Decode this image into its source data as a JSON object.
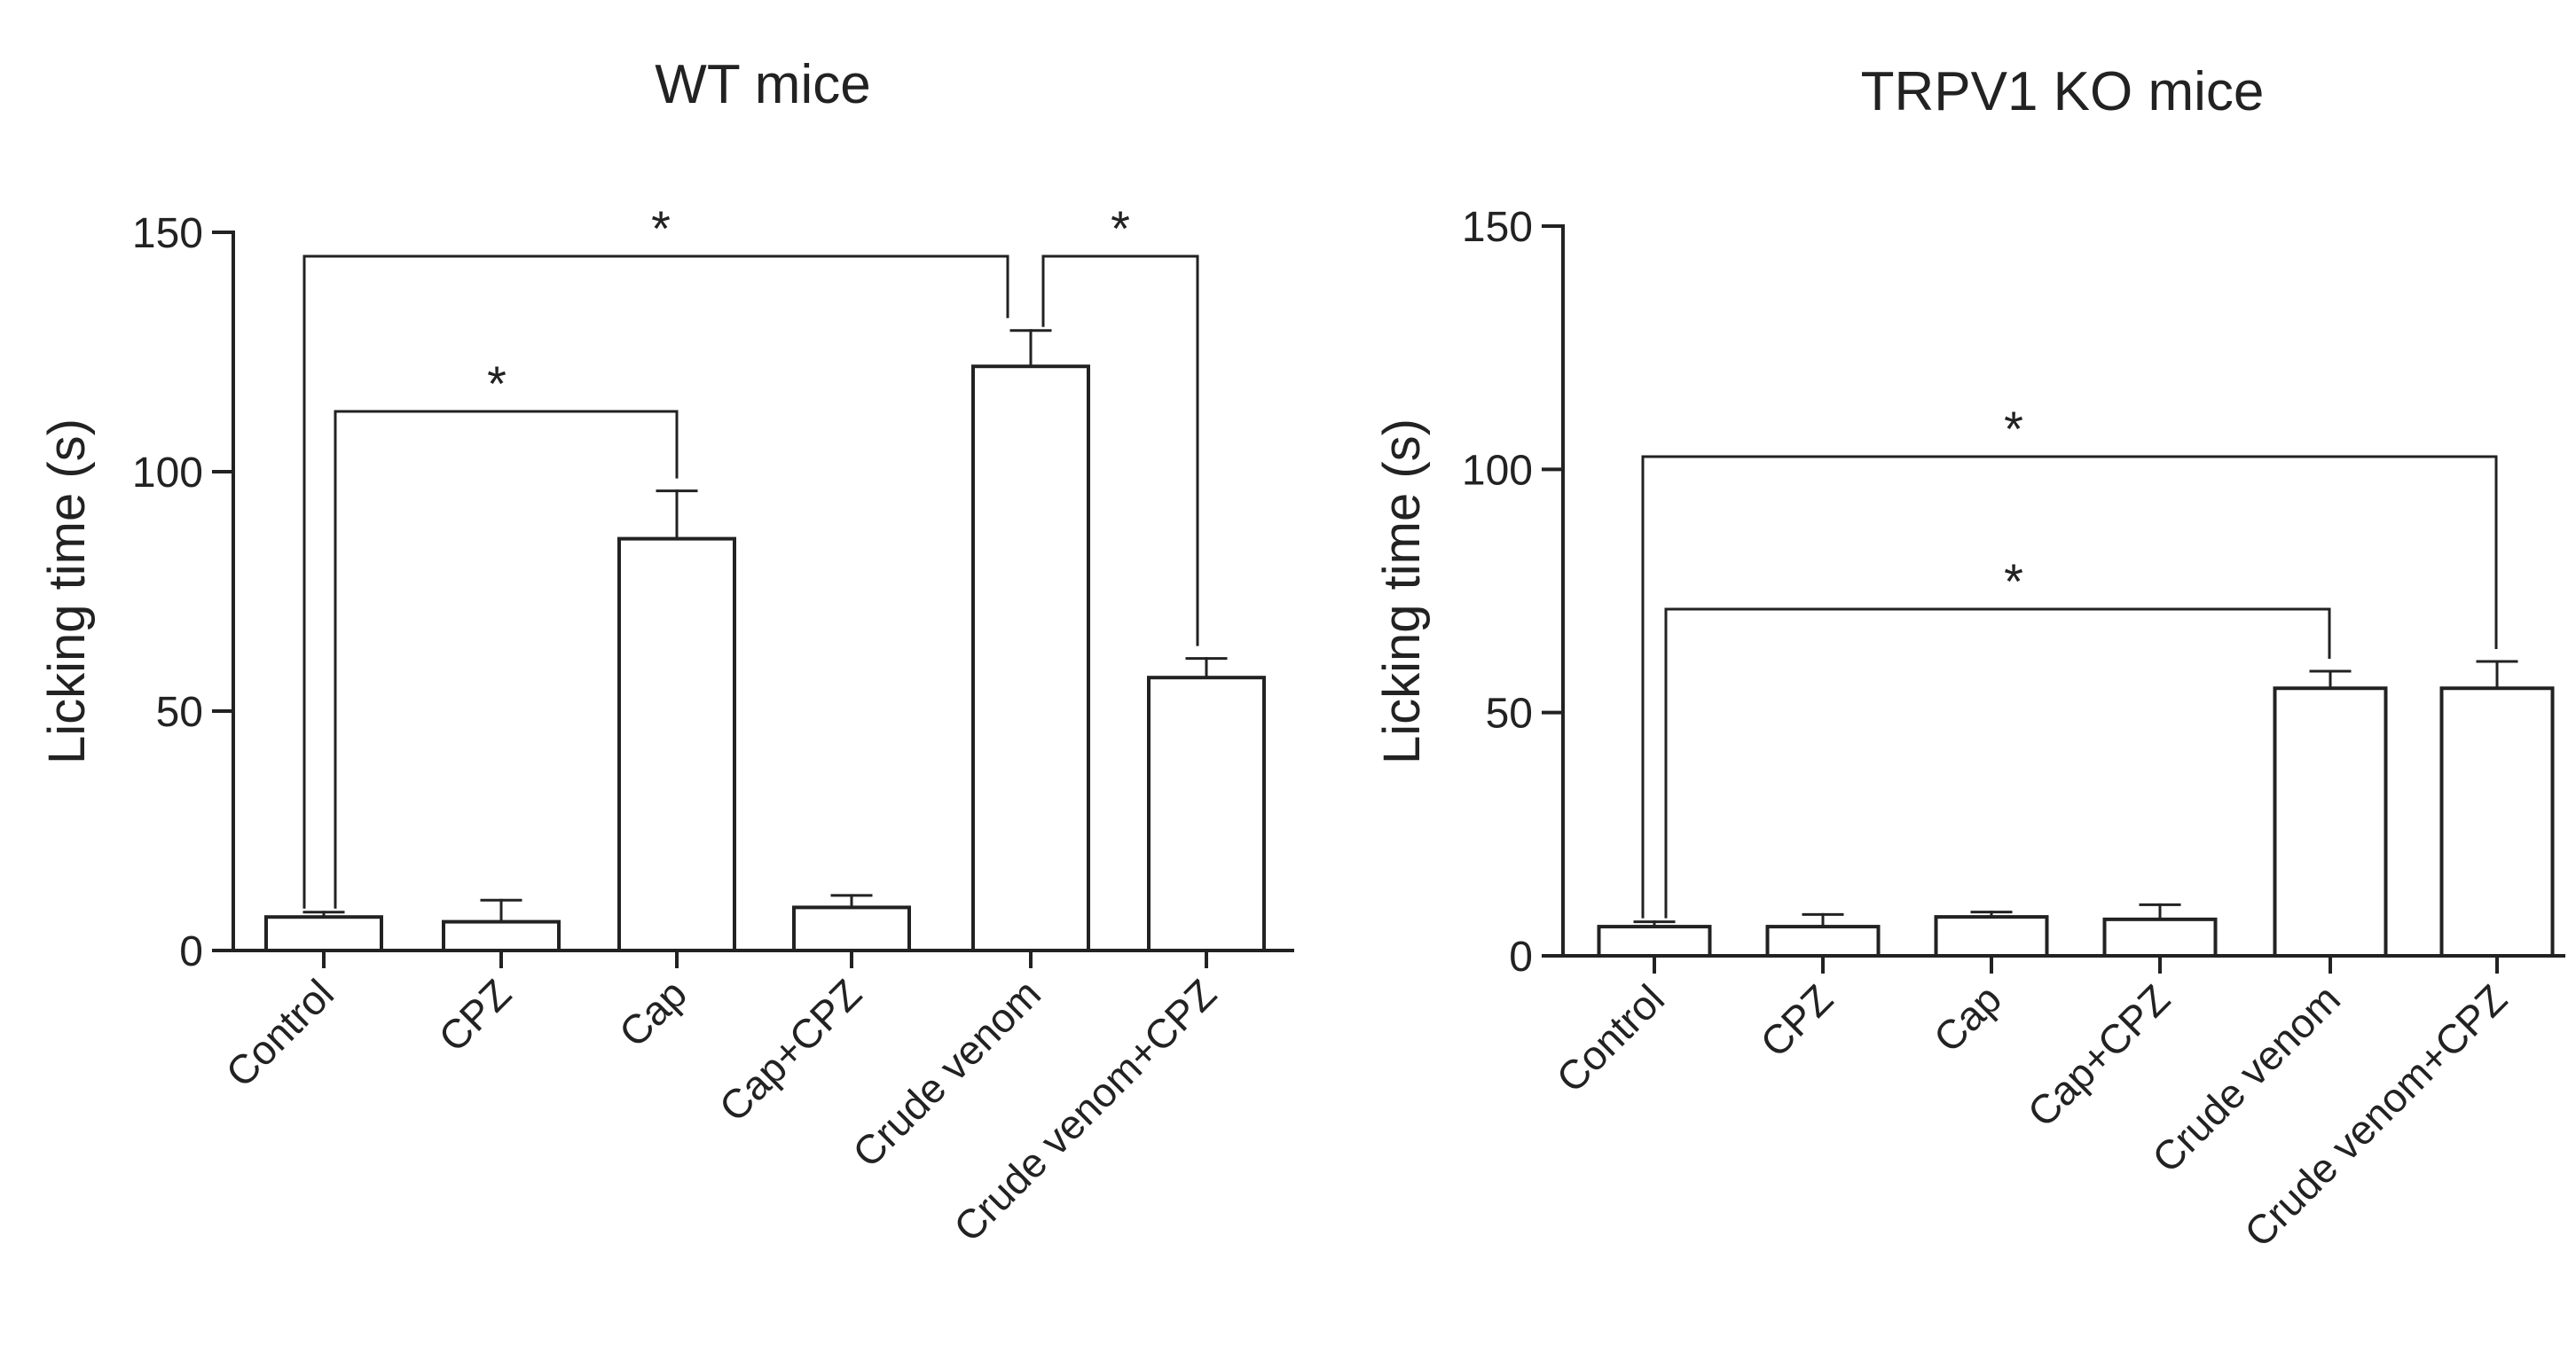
{
  "colors": {
    "ink": "#222222",
    "bar_fill": "#ffffff",
    "background": "#ffffff"
  },
  "chart_data": [
    {
      "type": "bar",
      "title": "WT mice",
      "xlabel": "",
      "ylabel": "Licking time (s)",
      "ylim": [
        0,
        150
      ],
      "yticks": [
        0,
        50,
        100,
        150
      ],
      "categories": [
        "Control",
        "CPZ",
        "Cap",
        "Cap+CPZ",
        "Crude venom",
        "Crude venom+CPZ"
      ],
      "values": [
        7,
        6,
        86,
        9,
        122,
        57
      ],
      "errors": [
        1,
        4.5,
        10,
        2.5,
        7.5,
        4
      ],
      "significance": [
        {
          "from": "Control",
          "to": "Crude venom",
          "label": "*"
        },
        {
          "from": "Crude venom",
          "to": "Crude venom+CPZ",
          "label": "*"
        },
        {
          "from": "Control",
          "to": "Cap",
          "label": "*"
        }
      ]
    },
    {
      "type": "bar",
      "title": "TRPV1 KO mice",
      "xlabel": "",
      "ylabel": "Licking time (s)",
      "ylim": [
        0,
        150
      ],
      "yticks": [
        0,
        50,
        100,
        150
      ],
      "categories": [
        "Control",
        "CPZ",
        "Cap",
        "Cap+CPZ",
        "Crude venom",
        "Crude venom+CPZ"
      ],
      "values": [
        6,
        6,
        8,
        7.5,
        55,
        55
      ],
      "errors": [
        1,
        2.5,
        1,
        3,
        3.5,
        5.5
      ],
      "significance": [
        {
          "from": "Control",
          "to": "Crude venom+CPZ",
          "label": "*"
        },
        {
          "from": "Control",
          "to": "Crude venom",
          "label": "*"
        }
      ]
    }
  ]
}
